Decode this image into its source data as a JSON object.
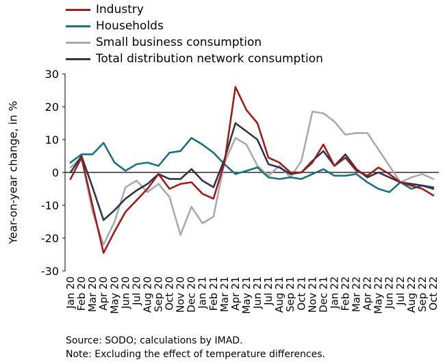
{
  "chart_data": {
    "type": "line",
    "title": "",
    "xlabel": "",
    "ylabel": "Year-on-year change, in %",
    "ylim": [
      -30,
      30
    ],
    "yticks": [
      -30,
      -20,
      -10,
      0,
      10,
      20,
      30
    ],
    "grid": false,
    "legend_position": "top-left",
    "categories": [
      "Jan 20",
      "Feb 20",
      "Mar 20",
      "Apr 20",
      "May 20",
      "Jun 20",
      "Jul 20",
      "Aug 20",
      "Sep 20",
      "Oct 20",
      "Nov 20",
      "Dec 20",
      "Jan 21",
      "Feb 21",
      "Mar 21",
      "Apr 21",
      "May 21",
      "Jun 21",
      "Jul 21",
      "Aug 21",
      "Sep 21",
      "Oct 21",
      "Nov 21",
      "Dec 21",
      "Jan 22",
      "Feb 22",
      "Mar 22",
      "Apr 22",
      "May 22",
      "Jun 22",
      "Jul 22",
      "Aug 22",
      "Sep 22",
      "Oct 22"
    ],
    "series": [
      {
        "name": "Industry",
        "color": "#a01c1c",
        "values": [
          -2,
          4.5,
          -10,
          -24.5,
          -18,
          -12,
          -8.5,
          -5,
          -0.5,
          -5,
          -3.5,
          -3,
          -6.5,
          -8,
          3,
          26,
          19,
          15,
          4.5,
          3,
          0,
          0,
          3,
          8.5,
          2,
          4.5,
          0.5,
          -1,
          1.5,
          -0.5,
          -3,
          -4,
          -5,
          -7
        ]
      },
      {
        "name": "Households",
        "color": "#1b7080",
        "values": [
          3,
          5.5,
          5.5,
          9,
          3,
          0.5,
          2.5,
          3,
          2,
          6,
          6.5,
          10.5,
          8.5,
          6,
          2.5,
          -0.5,
          0.5,
          1.5,
          -1.5,
          -2,
          -1.5,
          -2,
          -0.5,
          1,
          -1,
          -1,
          -0.5,
          -3,
          -5,
          -6,
          -3,
          -5,
          -4,
          -4.5
        ]
      },
      {
        "name": "Small business consumption",
        "color": "#a7abaf",
        "values": [
          1.5,
          4.5,
          -12,
          -22,
          -15,
          -4.5,
          -2.5,
          -6,
          -3.5,
          -7.5,
          -19,
          -10.5,
          -15.5,
          -13.5,
          3,
          10.5,
          8.5,
          2,
          -1,
          2,
          -1.5,
          3.5,
          18.5,
          18,
          15.5,
          11.5,
          12,
          12,
          7,
          2,
          -3,
          -1.5,
          -0.5,
          -2
        ]
      },
      {
        "name": "Total distribution network consumption",
        "color": "#2b344b",
        "values": [
          0,
          5,
          -4.5,
          -14.5,
          -11.5,
          -8,
          -5.5,
          -3.5,
          -0.5,
          -2,
          -2,
          1,
          -2.5,
          -4.5,
          4,
          15,
          12.5,
          10,
          2.5,
          1.5,
          -0.5,
          0,
          3.5,
          6.5,
          2,
          5.5,
          1,
          -1.5,
          0,
          -1.5,
          -3,
          -3.5,
          -4,
          -5
        ]
      }
    ]
  },
  "notes": {
    "source": "Source: SODO; calculations by IMAD.",
    "note": "Note: Excluding the effect of temperature differences."
  }
}
